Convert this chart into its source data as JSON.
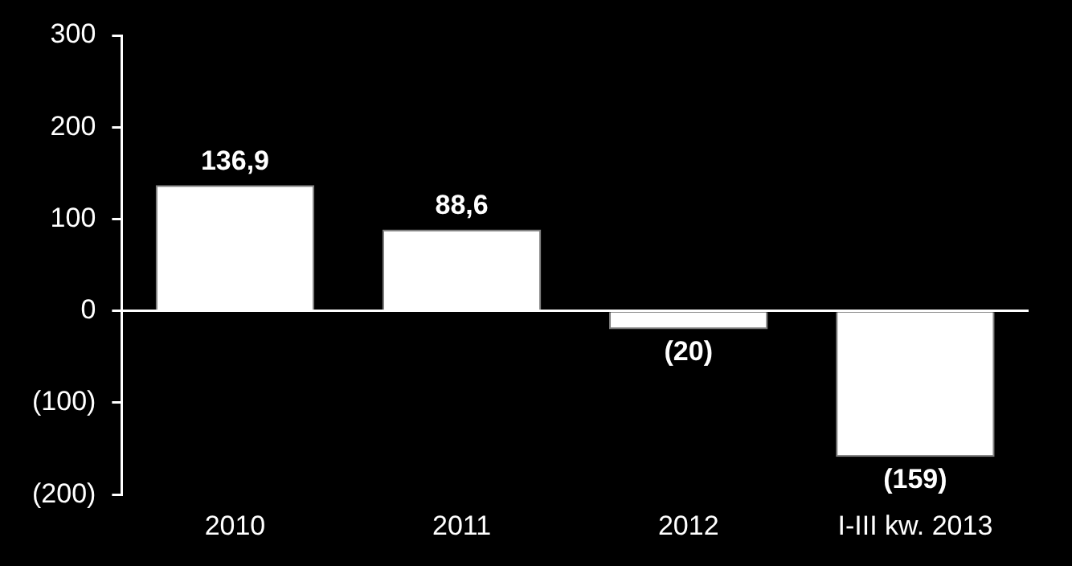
{
  "chart_data": {
    "type": "bar",
    "categories": [
      "2010",
      "2011",
      "2012",
      "I-III kw. 2013"
    ],
    "values": [
      136.9,
      88.6,
      -20,
      -159
    ],
    "color": "#ffffff",
    "value_labels": [
      "136,9",
      "88,6",
      "(20)",
      "(159)"
    ],
    "ylim": [
      -200,
      300
    ],
    "yticks": [
      {
        "value": -200,
        "label": "(200)"
      },
      {
        "value": -100,
        "label": "(100)"
      },
      0,
      100,
      200,
      300
    ]
  }
}
